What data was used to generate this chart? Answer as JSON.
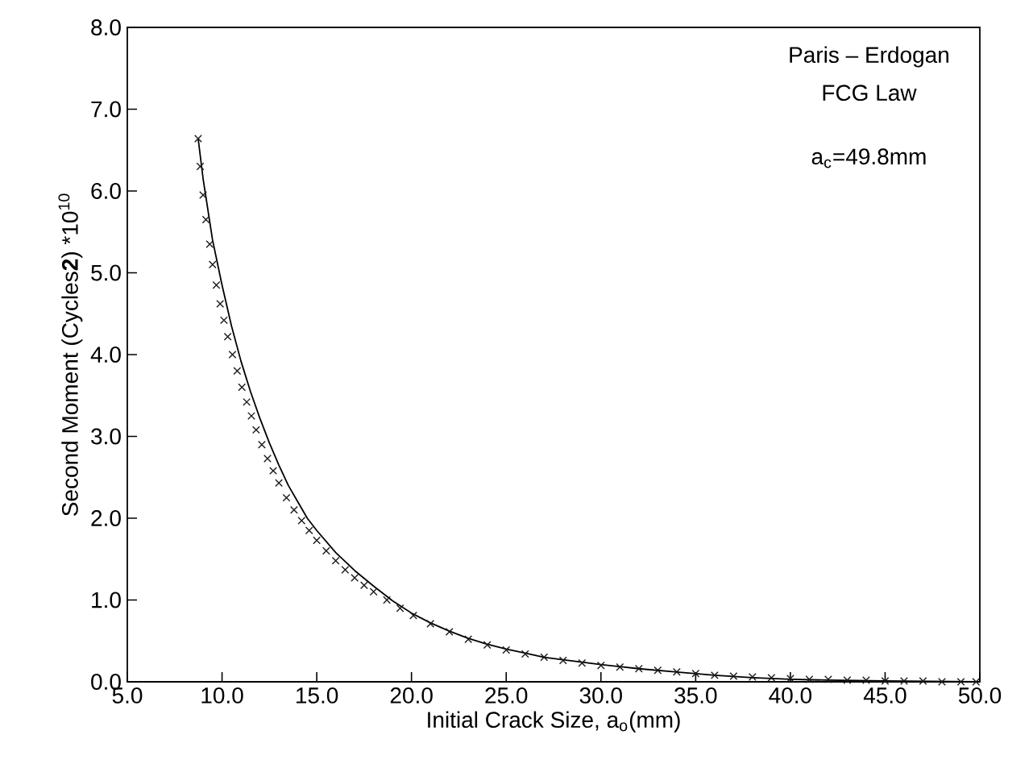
{
  "chart_data": {
    "type": "line",
    "xlabel": "Initial Crack Size, a$_{o}$(mm)",
    "ylabel": "Second Moment (Cycles**2**) *10$^{10}$",
    "annotations": [
      "Paris – Erdogan",
      "FCG Law",
      "a$_{c}$=49.8mm"
    ],
    "xlim": [
      5,
      50
    ],
    "ylim": [
      0,
      8
    ],
    "xticks": [
      {
        "value": 5,
        "label": "5.0"
      },
      {
        "value": 10,
        "label": "10.0"
      },
      {
        "value": 15,
        "label": "15.0"
      },
      {
        "value": 20,
        "label": "20.0"
      },
      {
        "value": 25,
        "label": "25.0"
      },
      {
        "value": 30,
        "label": "30.0"
      },
      {
        "value": 35,
        "label": "35.0"
      },
      {
        "value": 40,
        "label": "40.0"
      },
      {
        "value": 45,
        "label": "45.0"
      },
      {
        "value": 50,
        "label": "50.0"
      }
    ],
    "yticks": [
      {
        "value": 0,
        "label": "0.0"
      },
      {
        "value": 1,
        "label": "1.0"
      },
      {
        "value": 2,
        "label": "2.0"
      },
      {
        "value": 3,
        "label": "3.0"
      },
      {
        "value": 4,
        "label": "4.0"
      },
      {
        "value": 5,
        "label": "5.0"
      },
      {
        "value": 6,
        "label": "6.0"
      },
      {
        "value": 7,
        "label": "7.0"
      },
      {
        "value": 8,
        "label": "8.0"
      }
    ],
    "grid": false,
    "series": [
      {
        "marker": "none",
        "line_style": "solid",
        "color": "#000000",
        "x": [
          8.74,
          9.0,
          9.5,
          10.0,
          10.5,
          11.0,
          11.5,
          12.0,
          12.5,
          13.0,
          13.5,
          14.0,
          14.5,
          15,
          16,
          17,
          18,
          19,
          20,
          21,
          22,
          23,
          24,
          25,
          26,
          27,
          28,
          29,
          30,
          32,
          34,
          36,
          38,
          40,
          42,
          45,
          49.8
        ],
        "values": [
          6.64,
          6.15,
          5.4,
          4.85,
          4.35,
          3.92,
          3.55,
          3.22,
          2.92,
          2.65,
          2.4,
          2.2,
          2.0,
          1.85,
          1.58,
          1.36,
          1.17,
          0.99,
          0.84,
          0.72,
          0.62,
          0.53,
          0.46,
          0.4,
          0.35,
          0.3,
          0.27,
          0.24,
          0.21,
          0.16,
          0.12,
          0.08,
          0.05,
          0.03,
          0.02,
          0.01,
          0.0
        ]
      },
      {
        "type": "scatter",
        "marker": "cross",
        "color": "#1a1a1a",
        "x": [
          8.74,
          8.85,
          9.0,
          9.15,
          9.35,
          9.5,
          9.7,
          9.9,
          10.1,
          10.3,
          10.55,
          10.8,
          11.05,
          11.3,
          11.55,
          11.8,
          12.1,
          12.4,
          12.7,
          13.0,
          13.4,
          13.8,
          14.2,
          14.6,
          15.0,
          15.5,
          16,
          16.5,
          17,
          17.5,
          18,
          18.7,
          19.4,
          20.1,
          21,
          22,
          23,
          24,
          25,
          26,
          27,
          28,
          29,
          30,
          31,
          32,
          33,
          34,
          35,
          36,
          37,
          38,
          39,
          40,
          41,
          42,
          43,
          44,
          45,
          46,
          47,
          48,
          49,
          49.8
        ],
        "values": [
          6.64,
          6.3,
          5.95,
          5.65,
          5.35,
          5.1,
          4.85,
          4.62,
          4.42,
          4.22,
          4.0,
          3.8,
          3.6,
          3.42,
          3.25,
          3.08,
          2.9,
          2.73,
          2.58,
          2.43,
          2.25,
          2.1,
          1.97,
          1.85,
          1.73,
          1.6,
          1.48,
          1.37,
          1.27,
          1.18,
          1.1,
          1.0,
          0.9,
          0.81,
          0.71,
          0.61,
          0.52,
          0.45,
          0.39,
          0.34,
          0.3,
          0.26,
          0.23,
          0.2,
          0.18,
          0.16,
          0.14,
          0.12,
          0.1,
          0.08,
          0.07,
          0.06,
          0.05,
          0.04,
          0.03,
          0.03,
          0.02,
          0.02,
          0.01,
          0.01,
          0.01,
          0.0,
          0.0,
          0.0
        ]
      }
    ]
  }
}
